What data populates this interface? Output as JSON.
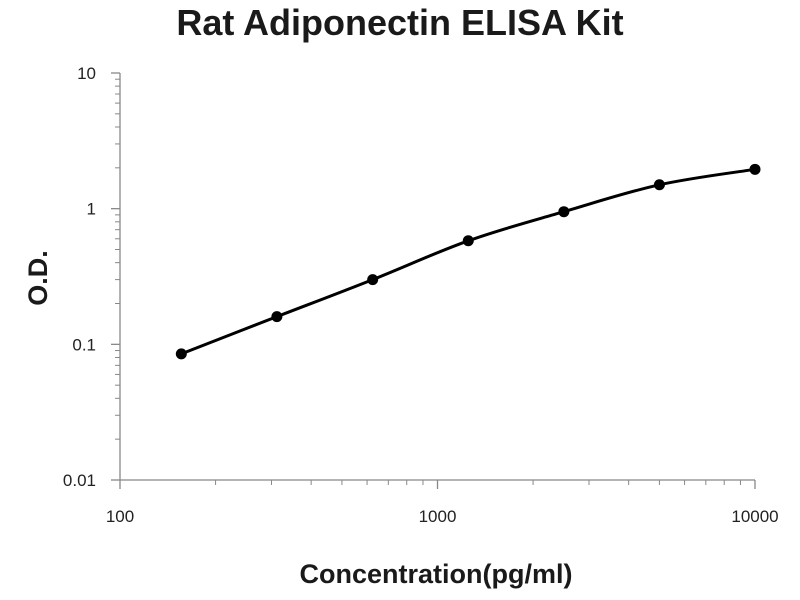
{
  "chart_data": {
    "type": "scatter",
    "title": "Rat Adiponectin ELISA Kit",
    "xlabel": "Concentration(pg/ml)",
    "ylabel": "O.D.",
    "xscale": "log",
    "yscale": "log",
    "xlim": [
      100,
      10000
    ],
    "ylim": [
      0.01,
      10
    ],
    "x_ticks": [
      "100",
      "1000",
      "10000"
    ],
    "y_ticks": [
      "0.01",
      "0.1",
      "1",
      "10"
    ],
    "grid": false,
    "legend": "none",
    "fit_line": true,
    "x": [
      156,
      312,
      625,
      1250,
      2500,
      5000,
      10000
    ],
    "y": [
      0.085,
      0.16,
      0.3,
      0.58,
      0.95,
      1.5,
      1.95
    ],
    "color": "#000000"
  }
}
